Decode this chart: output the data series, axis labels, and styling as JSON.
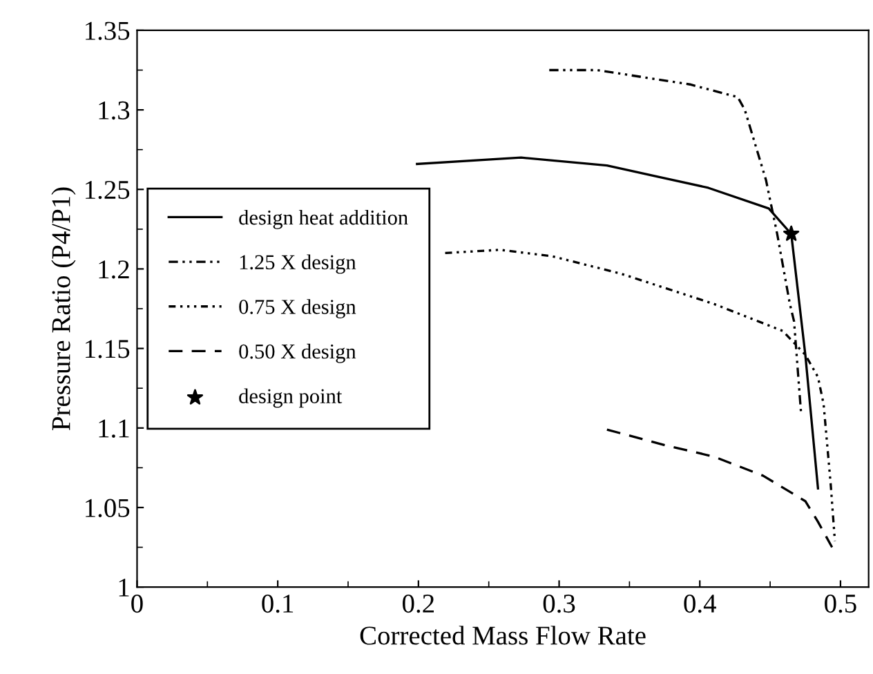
{
  "chart_data": {
    "type": "line",
    "xlabel": "Corrected Mass Flow Rate",
    "ylabel": "Pressure Ratio (P4/P1)",
    "xlim": [
      0,
      0.52
    ],
    "ylim": [
      1,
      1.35
    ],
    "xticks": [
      0,
      0.1,
      0.2,
      0.3,
      0.4,
      0.5
    ],
    "yticks": [
      1,
      1.05,
      1.1,
      1.15,
      1.2,
      1.25,
      1.3,
      1.35
    ],
    "grid": false,
    "legend": "left",
    "marker": "none",
    "series": [
      {
        "name": "design heat addition",
        "color": "#000000",
        "line_style": "solid",
        "x": [
          0.199,
          0.273,
          0.334,
          0.406,
          0.449,
          0.465,
          0.475,
          0.484
        ],
        "values": [
          1.266,
          1.27,
          1.265,
          1.251,
          1.238,
          1.222,
          1.146,
          1.062
        ]
      },
      {
        "name": "1.25 X design",
        "color": "#000000",
        "line_style": "dashdot",
        "x": [
          0.293,
          0.327,
          0.393,
          0.427,
          0.432,
          0.447,
          0.455,
          0.464,
          0.467,
          0.472
        ],
        "values": [
          1.325,
          1.325,
          1.316,
          1.308,
          1.3,
          1.256,
          1.222,
          1.178,
          1.167,
          1.109
        ]
      },
      {
        "name": "0.75 X design",
        "color": "#000000",
        "line_style": "dashdotdot",
        "x": [
          0.219,
          0.258,
          0.295,
          0.344,
          0.41,
          0.459,
          0.475,
          0.484,
          0.488,
          0.493,
          0.496
        ],
        "values": [
          1.21,
          1.212,
          1.208,
          1.197,
          1.178,
          1.161,
          1.146,
          1.132,
          1.115,
          1.065,
          1.029
        ]
      },
      {
        "name": "0.50 X design",
        "color": "#000000",
        "line_style": "dashed",
        "x": [
          0.334,
          0.376,
          0.41,
          0.445,
          0.475,
          0.484,
          0.494
        ],
        "values": [
          1.099,
          1.089,
          1.082,
          1.07,
          1.054,
          1.041,
          1.025
        ]
      },
      {
        "name": "design point",
        "type": "scatter",
        "marker": "star",
        "color": "#000000",
        "x": [
          0.465
        ],
        "values": [
          1.222
        ]
      }
    ]
  }
}
